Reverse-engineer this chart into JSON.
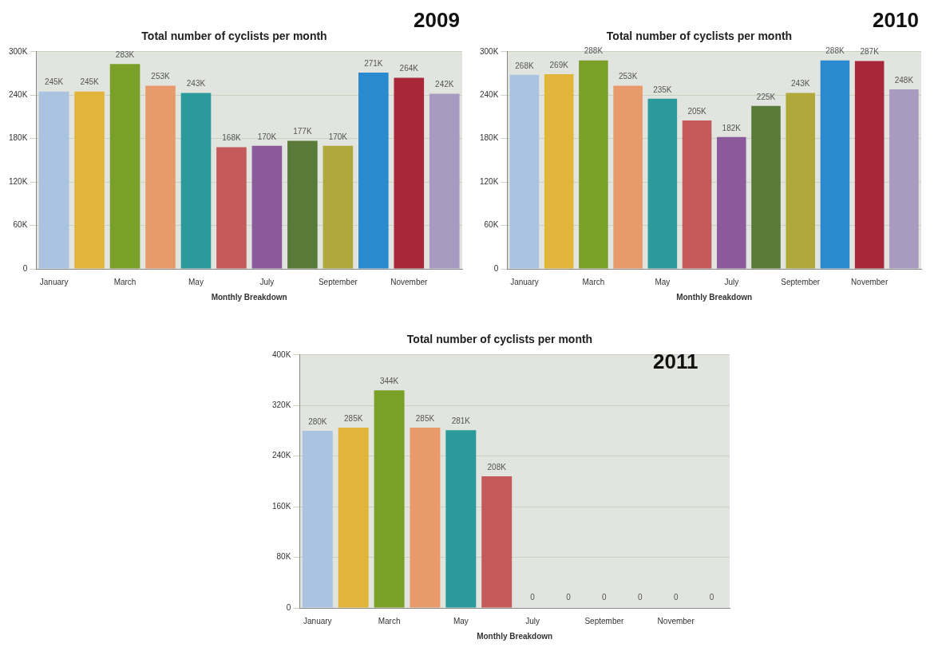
{
  "chart_data": [
    {
      "type": "bar",
      "title": "Total number of cyclists per month",
      "xlabel": "Monthly Breakdown",
      "annotations": [
        "2009"
      ],
      "categories": [
        "January",
        null,
        "March",
        null,
        "May",
        null,
        "July",
        null,
        "September",
        null,
        "November",
        null
      ],
      "values": [
        245000,
        245000,
        283000,
        253000,
        243000,
        168000,
        170000,
        177000,
        170000,
        271000,
        264000,
        242000
      ],
      "value_labels": [
        "245K",
        "245K",
        "283K",
        "253K",
        "243K",
        "168K",
        "170K",
        "177K",
        "170K",
        "271K",
        "264K",
        "242K"
      ],
      "colors": [
        "#a9c3e0",
        "#e2b53a",
        "#7aa02a",
        "#e89a6a",
        "#2a9a9a",
        "#c45a5a",
        "#8a5a9a",
        "#5a7a3a",
        "#b0a83a",
        "#2a8ad0",
        "#a8283a",
        "#a89ac0"
      ],
      "ylim": [
        0,
        300000
      ],
      "yticks": [
        {
          "value": 0,
          "label": "0"
        },
        {
          "value": 60000,
          "label": "60K"
        },
        {
          "value": 120000,
          "label": "120K"
        },
        {
          "value": 180000,
          "label": "180K"
        },
        {
          "value": 240000,
          "label": "240K"
        },
        {
          "value": 300000,
          "label": "300K"
        }
      ],
      "grid": "y",
      "legend": false
    },
    {
      "type": "bar",
      "title": "Total number of cyclists per month",
      "xlabel": "Monthly Breakdown",
      "annotations": [
        "2010"
      ],
      "categories": [
        "January",
        null,
        "March",
        null,
        "May",
        null,
        "July",
        null,
        "September",
        null,
        "November",
        null
      ],
      "values": [
        268000,
        269000,
        288000,
        253000,
        235000,
        205000,
        182000,
        225000,
        243000,
        288000,
        287000,
        248000
      ],
      "value_labels": [
        "268K",
        "269K",
        "288K",
        "253K",
        "235K",
        "205K",
        "182K",
        "225K",
        "243K",
        "288K",
        "287K",
        "248K"
      ],
      "colors": [
        "#a9c3e0",
        "#e2b53a",
        "#7aa02a",
        "#e89a6a",
        "#2a9a9a",
        "#c45a5a",
        "#8a5a9a",
        "#5a7a3a",
        "#b0a83a",
        "#2a8ad0",
        "#a8283a",
        "#a89ac0"
      ],
      "ylim": [
        0,
        300000
      ],
      "yticks": [
        {
          "value": 0,
          "label": "0"
        },
        {
          "value": 60000,
          "label": "60K"
        },
        {
          "value": 120000,
          "label": "120K"
        },
        {
          "value": 180000,
          "label": "180K"
        },
        {
          "value": 240000,
          "label": "240K"
        },
        {
          "value": 300000,
          "label": "300K"
        }
      ],
      "grid": "y",
      "legend": false
    },
    {
      "type": "bar",
      "title": "Total number of cyclists per month",
      "xlabel": "Monthly Breakdown",
      "annotations": [
        "2011"
      ],
      "categories": [
        "January",
        null,
        "March",
        null,
        "May",
        null,
        "July",
        null,
        "September",
        null,
        "November",
        null
      ],
      "values": [
        280000,
        285000,
        344000,
        285000,
        281000,
        208000,
        0,
        0,
        0,
        0,
        0,
        0
      ],
      "value_labels": [
        "280K",
        "285K",
        "344K",
        "285K",
        "281K",
        "208K",
        "0",
        "0",
        "0",
        "0",
        "0",
        "0"
      ],
      "colors": [
        "#a9c3e0",
        "#e2b53a",
        "#7aa02a",
        "#e89a6a",
        "#2a9a9a",
        "#c45a5a",
        "#8a5a9a",
        "#5a7a3a",
        "#b0a83a",
        "#2a8ad0",
        "#a8283a",
        "#a89ac0"
      ],
      "ylim": [
        0,
        400000
      ],
      "yticks": [
        {
          "value": 0,
          "label": "0"
        },
        {
          "value": 80000,
          "label": "80K"
        },
        {
          "value": 160000,
          "label": "160K"
        },
        {
          "value": 240000,
          "label": "240K"
        },
        {
          "value": 320000,
          "label": "320K"
        },
        {
          "value": 400000,
          "label": "400K"
        }
      ],
      "grid": "y",
      "legend": false
    }
  ]
}
